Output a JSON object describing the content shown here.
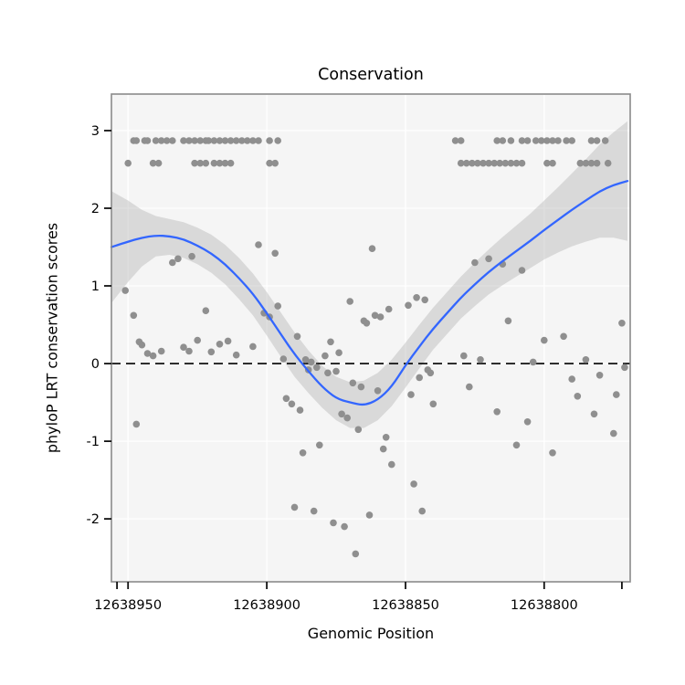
{
  "colors": {
    "points": "#8f8f8f",
    "smooth_line": "#3366FF",
    "ribbon": "#b9b9b9",
    "ribbon_opacity": 0.45,
    "zero_line": "#000000",
    "panel_bg": "#f5f5f5",
    "grid": "#ffffff",
    "border": "#8a8a8a",
    "tick": "#111111"
  },
  "chart_data": {
    "type": "scatter",
    "title": "Conservation",
    "xlabel": "Genomic Position",
    "ylabel": "phyloP LRT conservation scores",
    "x_reversed": true,
    "xlim": [
      12638956,
      12638769
    ],
    "ylim": [
      -2.81,
      3.47
    ],
    "x_ticks": [
      12638950,
      12638900,
      12638850,
      12638800
    ],
    "x_end_ticks": [
      12638954,
      12638772
    ],
    "y_ticks": [
      -2,
      -1,
      0,
      1,
      2,
      3
    ],
    "hline": 0,
    "legend": "none",
    "grid": "on",
    "points": [
      [
        12638948,
        2.87
      ],
      [
        12638947,
        2.87
      ],
      [
        12638944,
        2.87
      ],
      [
        12638943,
        2.87
      ],
      [
        12638940,
        2.87
      ],
      [
        12638938,
        2.87
      ],
      [
        12638936,
        2.87
      ],
      [
        12638934,
        2.87
      ],
      [
        12638930,
        2.87
      ],
      [
        12638928,
        2.87
      ],
      [
        12638926,
        2.87
      ],
      [
        12638924,
        2.87
      ],
      [
        12638922,
        2.87
      ],
      [
        12638921,
        2.87
      ],
      [
        12638919,
        2.87
      ],
      [
        12638917,
        2.87
      ],
      [
        12638915,
        2.87
      ],
      [
        12638913,
        2.87
      ],
      [
        12638911,
        2.87
      ],
      [
        12638909,
        2.87
      ],
      [
        12638907,
        2.87
      ],
      [
        12638905,
        2.87
      ],
      [
        12638903,
        2.87
      ],
      [
        12638899,
        2.87
      ],
      [
        12638896,
        2.87
      ],
      [
        12638832,
        2.87
      ],
      [
        12638830,
        2.87
      ],
      [
        12638817,
        2.87
      ],
      [
        12638815,
        2.87
      ],
      [
        12638812,
        2.87
      ],
      [
        12638808,
        2.87
      ],
      [
        12638806,
        2.87
      ],
      [
        12638803,
        2.87
      ],
      [
        12638801,
        2.87
      ],
      [
        12638799,
        2.87
      ],
      [
        12638797,
        2.87
      ],
      [
        12638795,
        2.87
      ],
      [
        12638792,
        2.87
      ],
      [
        12638790,
        2.87
      ],
      [
        12638783,
        2.87
      ],
      [
        12638781,
        2.87
      ],
      [
        12638778,
        2.87
      ],
      [
        12638950,
        2.58
      ],
      [
        12638941,
        2.58
      ],
      [
        12638939,
        2.58
      ],
      [
        12638926,
        2.58
      ],
      [
        12638924,
        2.58
      ],
      [
        12638922,
        2.58
      ],
      [
        12638919,
        2.58
      ],
      [
        12638917,
        2.58
      ],
      [
        12638915,
        2.58
      ],
      [
        12638913,
        2.58
      ],
      [
        12638899,
        2.58
      ],
      [
        12638897,
        2.58
      ],
      [
        12638830,
        2.58
      ],
      [
        12638828,
        2.58
      ],
      [
        12638826,
        2.58
      ],
      [
        12638824,
        2.58
      ],
      [
        12638822,
        2.58
      ],
      [
        12638820,
        2.58
      ],
      [
        12638818,
        2.58
      ],
      [
        12638816,
        2.58
      ],
      [
        12638814,
        2.58
      ],
      [
        12638812,
        2.58
      ],
      [
        12638810,
        2.58
      ],
      [
        12638808,
        2.58
      ],
      [
        12638799,
        2.58
      ],
      [
        12638797,
        2.58
      ],
      [
        12638787,
        2.58
      ],
      [
        12638785,
        2.58
      ],
      [
        12638783,
        2.58
      ],
      [
        12638781,
        2.58
      ],
      [
        12638777,
        2.58
      ],
      [
        12638951,
        0.94
      ],
      [
        12638948,
        0.62
      ],
      [
        12638947,
        -0.78
      ],
      [
        12638946,
        0.28
      ],
      [
        12638945,
        0.24
      ],
      [
        12638943,
        0.13
      ],
      [
        12638941,
        0.1
      ],
      [
        12638938,
        0.16
      ],
      [
        12638934,
        1.3
      ],
      [
        12638932,
        1.35
      ],
      [
        12638930,
        0.21
      ],
      [
        12638928,
        0.16
      ],
      [
        12638927,
        1.38
      ],
      [
        12638925,
        0.3
      ],
      [
        12638922,
        0.68
      ],
      [
        12638920,
        0.15
      ],
      [
        12638917,
        0.25
      ],
      [
        12638914,
        0.29
      ],
      [
        12638911,
        0.11
      ],
      [
        12638905,
        0.22
      ],
      [
        12638903,
        1.53
      ],
      [
        12638901,
        0.65
      ],
      [
        12638899,
        0.6
      ],
      [
        12638897,
        1.42
      ],
      [
        12638896,
        0.74
      ],
      [
        12638894,
        0.06
      ],
      [
        12638893,
        -0.45
      ],
      [
        12638891,
        -0.52
      ],
      [
        12638890,
        -1.85
      ],
      [
        12638889,
        0.35
      ],
      [
        12638888,
        -0.6
      ],
      [
        12638887,
        -1.15
      ],
      [
        12638886,
        0.05
      ],
      [
        12638885,
        -0.08
      ],
      [
        12638884,
        0.02
      ],
      [
        12638883,
        -1.9
      ],
      [
        12638882,
        -0.05
      ],
      [
        12638881,
        -1.05
      ],
      [
        12638879,
        0.1
      ],
      [
        12638878,
        -0.12
      ],
      [
        12638877,
        0.28
      ],
      [
        12638876,
        -2.05
      ],
      [
        12638875,
        -0.1
      ],
      [
        12638874,
        0.14
      ],
      [
        12638873,
        -0.65
      ],
      [
        12638872,
        -2.1
      ],
      [
        12638871,
        -0.7
      ],
      [
        12638870,
        0.8
      ],
      [
        12638869,
        -0.25
      ],
      [
        12638868,
        -2.45
      ],
      [
        12638867,
        -0.85
      ],
      [
        12638866,
        -0.3
      ],
      [
        12638865,
        0.55
      ],
      [
        12638864,
        0.52
      ],
      [
        12638863,
        -1.95
      ],
      [
        12638862,
        1.48
      ],
      [
        12638861,
        0.62
      ],
      [
        12638860,
        -0.35
      ],
      [
        12638859,
        0.6
      ],
      [
        12638858,
        -1.1
      ],
      [
        12638857,
        -0.95
      ],
      [
        12638856,
        0.7
      ],
      [
        12638855,
        -1.3
      ],
      [
        12638849,
        0.75
      ],
      [
        12638848,
        -0.4
      ],
      [
        12638847,
        -1.55
      ],
      [
        12638846,
        0.85
      ],
      [
        12638845,
        -0.18
      ],
      [
        12638844,
        -1.9
      ],
      [
        12638843,
        0.82
      ],
      [
        12638842,
        -0.08
      ],
      [
        12638841,
        -0.12
      ],
      [
        12638840,
        -0.52
      ],
      [
        12638829,
        0.1
      ],
      [
        12638827,
        -0.3
      ],
      [
        12638825,
        1.3
      ],
      [
        12638823,
        0.05
      ],
      [
        12638820,
        1.35
      ],
      [
        12638817,
        -0.62
      ],
      [
        12638815,
        1.28
      ],
      [
        12638813,
        0.55
      ],
      [
        12638810,
        -1.05
      ],
      [
        12638808,
        1.2
      ],
      [
        12638806,
        -0.75
      ],
      [
        12638804,
        0.02
      ],
      [
        12638800,
        0.3
      ],
      [
        12638797,
        -1.15
      ],
      [
        12638793,
        0.35
      ],
      [
        12638790,
        -0.2
      ],
      [
        12638788,
        -0.42
      ],
      [
        12638785,
        0.05
      ],
      [
        12638782,
        -0.65
      ],
      [
        12638780,
        -0.15
      ],
      [
        12638775,
        -0.9
      ],
      [
        12638774,
        -0.4
      ],
      [
        12638772,
        0.52
      ],
      [
        12638771,
        -0.05
      ]
    ],
    "smooth": {
      "x": [
        12638956,
        12638950,
        12638945,
        12638940,
        12638935,
        12638930,
        12638925,
        12638920,
        12638915,
        12638910,
        12638905,
        12638900,
        12638895,
        12638890,
        12638885,
        12638880,
        12638875,
        12638870,
        12638865,
        12638860,
        12638855,
        12638850,
        12638845,
        12638840,
        12638835,
        12638830,
        12638825,
        12638820,
        12638815,
        12638810,
        12638805,
        12638800,
        12638795,
        12638790,
        12638785,
        12638780,
        12638775,
        12638770
      ],
      "y": [
        1.5,
        1.57,
        1.62,
        1.65,
        1.64,
        1.6,
        1.52,
        1.42,
        1.28,
        1.1,
        0.9,
        0.65,
        0.38,
        0.12,
        -0.1,
        -0.3,
        -0.45,
        -0.5,
        -0.54,
        -0.47,
        -0.3,
        -0.02,
        0.22,
        0.45,
        0.65,
        0.85,
        1.02,
        1.18,
        1.32,
        1.45,
        1.58,
        1.72,
        1.85,
        1.98,
        2.1,
        2.22,
        2.3,
        2.35
      ],
      "upper": [
        2.22,
        2.1,
        1.98,
        1.9,
        1.86,
        1.82,
        1.75,
        1.66,
        1.53,
        1.36,
        1.16,
        0.92,
        0.66,
        0.4,
        0.17,
        -0.03,
        -0.17,
        -0.24,
        -0.22,
        -0.12,
        0.05,
        0.27,
        0.5,
        0.72,
        0.92,
        1.12,
        1.3,
        1.47,
        1.63,
        1.78,
        1.93,
        2.1,
        2.27,
        2.45,
        2.63,
        2.82,
        2.98,
        3.12
      ],
      "lower": [
        0.78,
        1.05,
        1.25,
        1.38,
        1.4,
        1.36,
        1.28,
        1.17,
        1.02,
        0.83,
        0.62,
        0.36,
        0.09,
        -0.17,
        -0.38,
        -0.57,
        -0.73,
        -0.83,
        -0.83,
        -0.73,
        -0.55,
        -0.31,
        -0.06,
        0.18,
        0.38,
        0.58,
        0.74,
        0.89,
        1.01,
        1.12,
        1.23,
        1.34,
        1.43,
        1.51,
        1.57,
        1.62,
        1.62,
        1.58
      ]
    }
  }
}
